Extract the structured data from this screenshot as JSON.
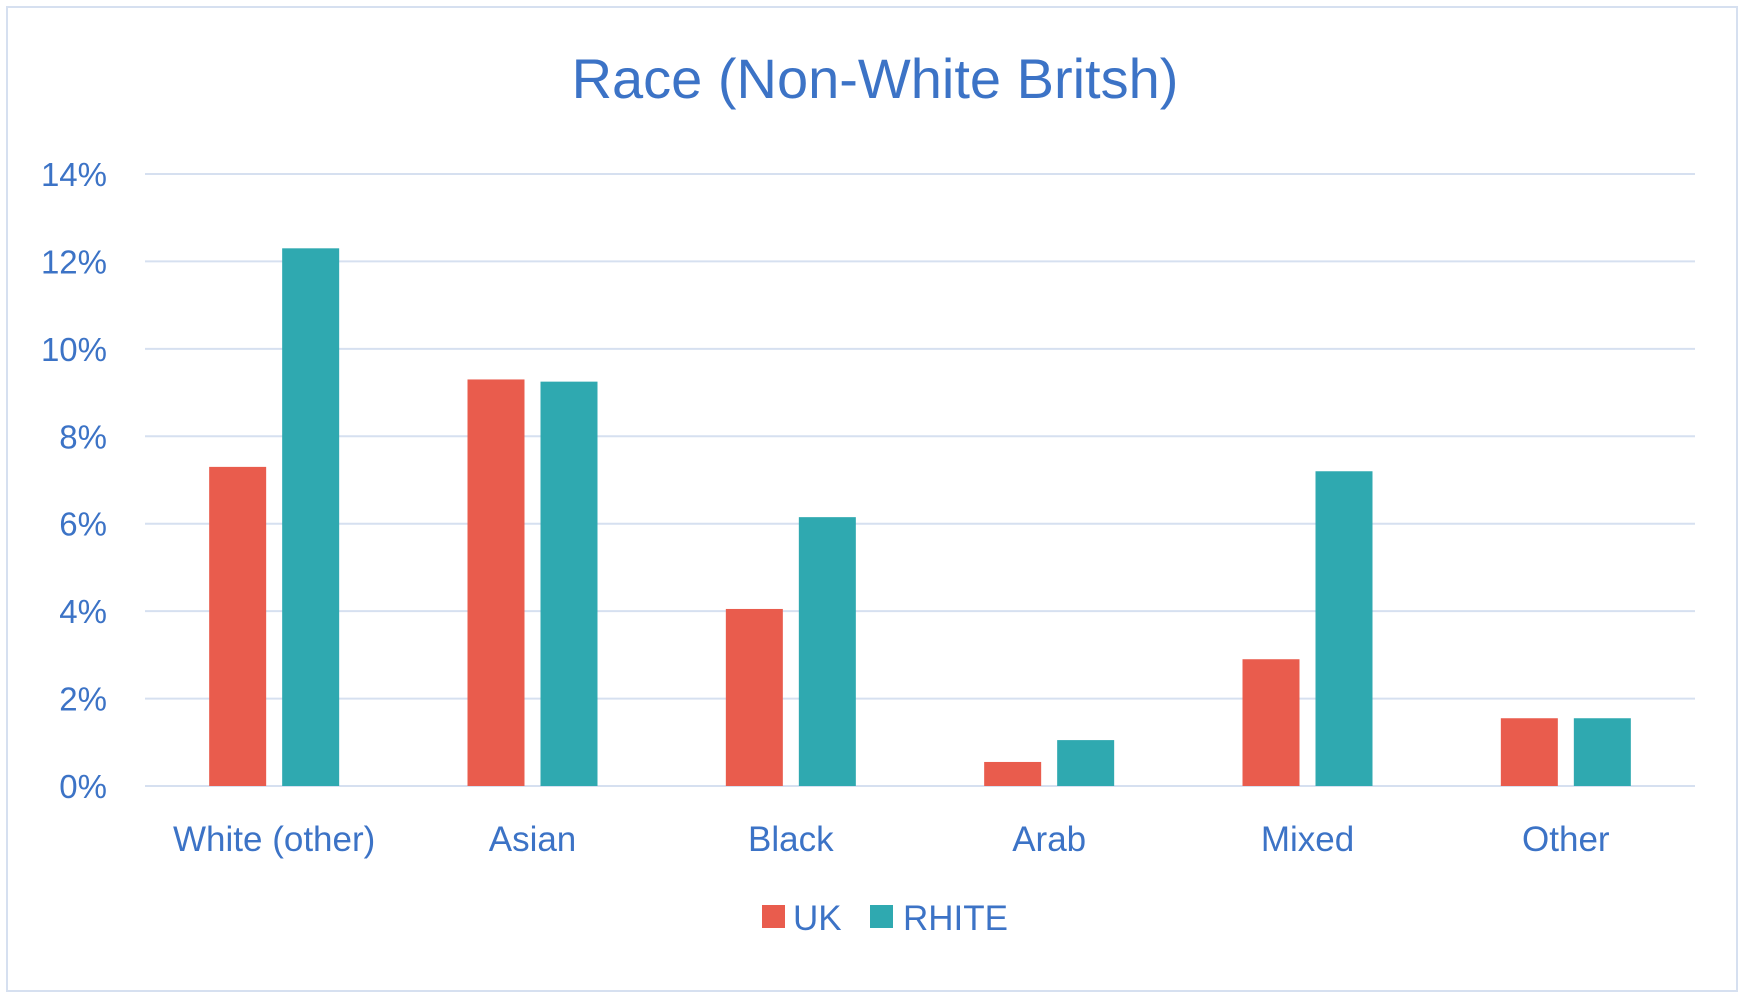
{
  "chart_data": {
    "type": "bar",
    "title": "Race (Non-White Britsh)",
    "xlabel": "",
    "ylabel": "",
    "categories": [
      "White (other)",
      "Asian",
      "Black",
      "Arab",
      "Mixed",
      "Other"
    ],
    "series": [
      {
        "name": "UK",
        "values": [
          7.3,
          9.3,
          4.05,
          0.55,
          2.9,
          1.55
        ],
        "color": "#e95c4d"
      },
      {
        "name": "RHITE",
        "values": [
          12.3,
          9.25,
          6.15,
          1.05,
          7.2,
          1.55
        ],
        "color": "#2fa9b0"
      }
    ],
    "ylim": [
      0,
      14
    ],
    "yticks": [
      0,
      2,
      4,
      6,
      8,
      10,
      12,
      14
    ],
    "ytick_labels": [
      "0%",
      "2%",
      "4%",
      "6%",
      "8%",
      "10%",
      "12%",
      "14%"
    ],
    "grid": true,
    "legend_position": "bottom",
    "colors": {
      "text": "#3c73c6",
      "grid": "#d6e0f0",
      "frame": "#d6e0f0"
    }
  }
}
